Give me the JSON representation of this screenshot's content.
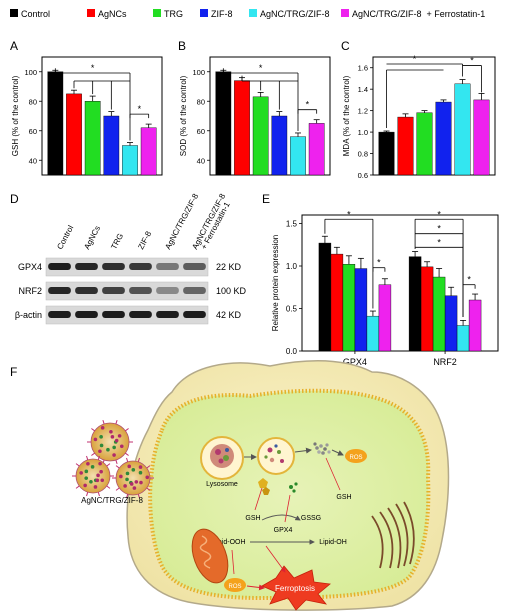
{
  "legend": {
    "items": [
      {
        "label": "Control",
        "color": "#000000"
      },
      {
        "label": "AgNCs",
        "color": "#ff0000"
      },
      {
        "label": "TRG",
        "color": "#22dd22"
      },
      {
        "label": "ZIF-8",
        "color": "#1122ee"
      },
      {
        "label": "AgNC/TRG/ZIF-8",
        "color": "#33e6f0"
      },
      {
        "label": "AgNC/TRG/ZIF-8  + Ferrostatin-1",
        "color": "#ee22ee"
      }
    ]
  },
  "panels": {
    "A": "A",
    "B": "B",
    "C": "C",
    "D": "D",
    "E": "E",
    "F": "F"
  },
  "chart_data": [
    {
      "type": "bar",
      "panel": "A",
      "ylabel": "GSH (% of the control)",
      "ylim": [
        30,
        110
      ],
      "yticks": [
        40,
        60,
        80,
        100
      ],
      "categories": [
        "Control",
        "AgNCs",
        "TRG",
        "ZIF-8",
        "AgNC/TRG/ZIF-8",
        "AgNC/TRG/ZIF-8 + Ferrostatin-1"
      ],
      "values": [
        100,
        85,
        80,
        70,
        50,
        62
      ],
      "errors": [
        1,
        2.5,
        3.5,
        3,
        2,
        2.5
      ],
      "significance": [
        "*",
        "*"
      ]
    },
    {
      "type": "bar",
      "panel": "B",
      "ylabel": "SOD (% of the control)",
      "ylim": [
        30,
        110
      ],
      "yticks": [
        40,
        60,
        80,
        100
      ],
      "categories": [
        "Control",
        "AgNCs",
        "TRG",
        "ZIF-8",
        "AgNC/TRG/ZIF-8",
        "AgNC/TRG/ZIF-8 + Ferrostatin-1"
      ],
      "values": [
        100,
        94,
        83,
        70,
        56,
        65
      ],
      "errors": [
        1,
        2,
        3,
        3,
        2.5,
        2.5
      ],
      "significance": [
        "*",
        "*"
      ]
    },
    {
      "type": "bar",
      "panel": "C",
      "ylabel": "MDA (% of the control)",
      "ylim": [
        0.6,
        1.7
      ],
      "yticks": [
        0.6,
        0.8,
        1.0,
        1.2,
        1.4,
        1.6
      ],
      "categories": [
        "Control",
        "AgNCs",
        "TRG",
        "ZIF-8",
        "AgNC/TRG/ZIF-8",
        "AgNC/TRG/ZIF-8 + Ferrostatin-1"
      ],
      "values": [
        1.0,
        1.14,
        1.18,
        1.28,
        1.45,
        1.3
      ],
      "errors": [
        0.01,
        0.03,
        0.02,
        0.02,
        0.04,
        0.06
      ],
      "significance": [
        "*",
        "*"
      ]
    },
    {
      "type": "bar",
      "panel": "E",
      "ylabel": "Relative protein expression",
      "ylim": [
        0.0,
        1.6
      ],
      "yticks": [
        0.0,
        0.5,
        1.0,
        1.5
      ],
      "groups": [
        "GPX4",
        "NRF2"
      ],
      "series": [
        {
          "values": [
            1.27,
            1.11
          ],
          "errors": [
            0.08,
            0.06
          ]
        },
        {
          "values": [
            1.14,
            0.99
          ],
          "errors": [
            0.08,
            0.06
          ]
        },
        {
          "values": [
            1.02,
            0.87
          ],
          "errors": [
            0.1,
            0.1
          ]
        },
        {
          "values": [
            0.97,
            0.65
          ],
          "errors": [
            0.12,
            0.1
          ]
        },
        {
          "values": [
            0.41,
            0.3
          ],
          "errors": [
            0.06,
            0.06
          ]
        },
        {
          "values": [
            0.78,
            0.6
          ],
          "errors": [
            0.07,
            0.07
          ]
        }
      ],
      "significance": [
        "*",
        "*",
        "*",
        "*",
        "*"
      ]
    }
  ],
  "blot": {
    "lanes": [
      "Control",
      "AgNCs",
      "TRG",
      "ZIF-8",
      "AgNC/TRG/ZIF-8",
      "AgNC/TRG/ZIF-8\n+ Ferrostatin-1"
    ],
    "lane_line1": [
      "Control",
      "AgNCs",
      "TRG",
      "ZIF-8",
      "AgNC/TRG/ZIF-8",
      "AgNC/TRG/ZIF-8"
    ],
    "lane_line2": [
      "",
      "",
      "",
      "",
      "",
      "+ Ferrostatin-1"
    ],
    "rows": [
      {
        "name": "GPX4",
        "size": "22 KD",
        "intensity": [
          0.95,
          0.9,
          0.85,
          0.8,
          0.45,
          0.6
        ]
      },
      {
        "name": "NRF2",
        "size": "100 KD",
        "intensity": [
          0.9,
          0.85,
          0.75,
          0.65,
          0.35,
          0.55
        ]
      },
      {
        "name": "β-actin",
        "size": "42 KD",
        "intensity": [
          0.95,
          0.95,
          0.95,
          0.95,
          0.95,
          0.95
        ]
      }
    ]
  },
  "diagram": {
    "nanoparticle_label": "AgNC/TRG/ZIF-8",
    "lysosome": "Lysosome",
    "ros_top": "ROS",
    "ros_bottom": "ROS",
    "gsh_right": "GSH",
    "gsh_center": "GSH",
    "gpx4": "GPX4",
    "gssg": "GSSG",
    "lipid_ooh": "Lipid-OOH",
    "lipid_oh": "Lipid-OH",
    "ferroptosis": "Ferroptosis"
  }
}
